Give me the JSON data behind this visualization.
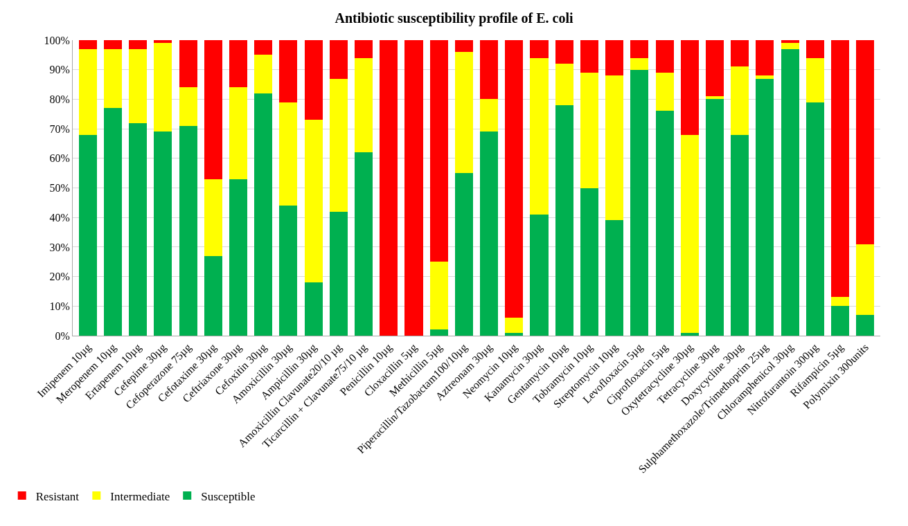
{
  "chart_data": {
    "type": "bar",
    "stacked": true,
    "title": "Antibiotic susceptibility profile of E. coli",
    "categories": [
      "Imipenem 10µg",
      "Meropenem 10µg",
      "Ertapenem 10µg",
      "Cefepime 30µg",
      "Cefoperazone 75µg",
      "Cefotaxime 30µg",
      "Ceftriaxone 30µg",
      "Cefoxitin 30µg",
      "Amoxicillin 30µg",
      "Ampicillin 30µg",
      "Amoxicillin Clavunate20/10 µg",
      "Ticarcillin + Clavunate75/10 µg",
      "Penicillin 10µg",
      "Cloxacillin 5µg",
      "Methicillin 5µg",
      "Piperacillin/Tazobactam100/10µg",
      "Aztreonam 30µg",
      "Neomycin 10µg",
      "Kanamycin 30µg",
      "Gentamycin 10µg",
      "Tobramycin 10µg",
      "Streptomycin 10µg",
      "Levofloxacin 5µg",
      "Ciprofloxacin 5µg",
      "Oxytetracycline 30µg",
      "Tetracycline 30µg",
      "Doxycycline 30µg",
      "Sulphamethoxazole/Trimethoprim 25µg",
      "Chloramphenicol 30µg",
      "Nitrofurantoin 300µg",
      "Rifampicin 5µg",
      "Polymixin 300units"
    ],
    "series": [
      {
        "name": "Susceptible",
        "color": "#00b050",
        "values": [
          68,
          77,
          72,
          69,
          71,
          27,
          53,
          82,
          44,
          18,
          42,
          62,
          0,
          0,
          2,
          55,
          69,
          1,
          41,
          78,
          50,
          39,
          90,
          76,
          1,
          80,
          68,
          87,
          97,
          79,
          10,
          7
        ]
      },
      {
        "name": "Intermediate",
        "color": "#ffff00",
        "values": [
          29,
          20,
          25,
          30,
          13,
          26,
          31,
          13,
          35,
          55,
          45,
          32,
          0,
          0,
          23,
          41,
          11,
          5,
          53,
          14,
          39,
          49,
          4,
          13,
          67,
          1,
          23,
          1,
          2,
          15,
          3,
          24
        ]
      },
      {
        "name": "Resistant",
        "color": "#ff0000",
        "values": [
          3,
          3,
          3,
          1,
          16,
          47,
          16,
          5,
          21,
          27,
          13,
          6,
          100,
          100,
          75,
          4,
          20,
          94,
          6,
          8,
          11,
          12,
          6,
          11,
          32,
          19,
          9,
          12,
          1,
          6,
          87,
          69
        ]
      }
    ],
    "ylim": [
      0,
      100
    ],
    "yticks": [
      {
        "value": 0,
        "label": "0%"
      },
      {
        "value": 10,
        "label": "10%"
      },
      {
        "value": 20,
        "label": "20%"
      },
      {
        "value": 30,
        "label": "30%"
      },
      {
        "value": 40,
        "label": "40%"
      },
      {
        "value": 50,
        "label": "50%"
      },
      {
        "value": 60,
        "label": "60%"
      },
      {
        "value": 70,
        "label": "70%"
      },
      {
        "value": 80,
        "label": "80%"
      },
      {
        "value": 90,
        "label": "90%"
      },
      {
        "value": 100,
        "label": "100%"
      }
    ],
    "grid": "y",
    "legend": "bottom left"
  }
}
